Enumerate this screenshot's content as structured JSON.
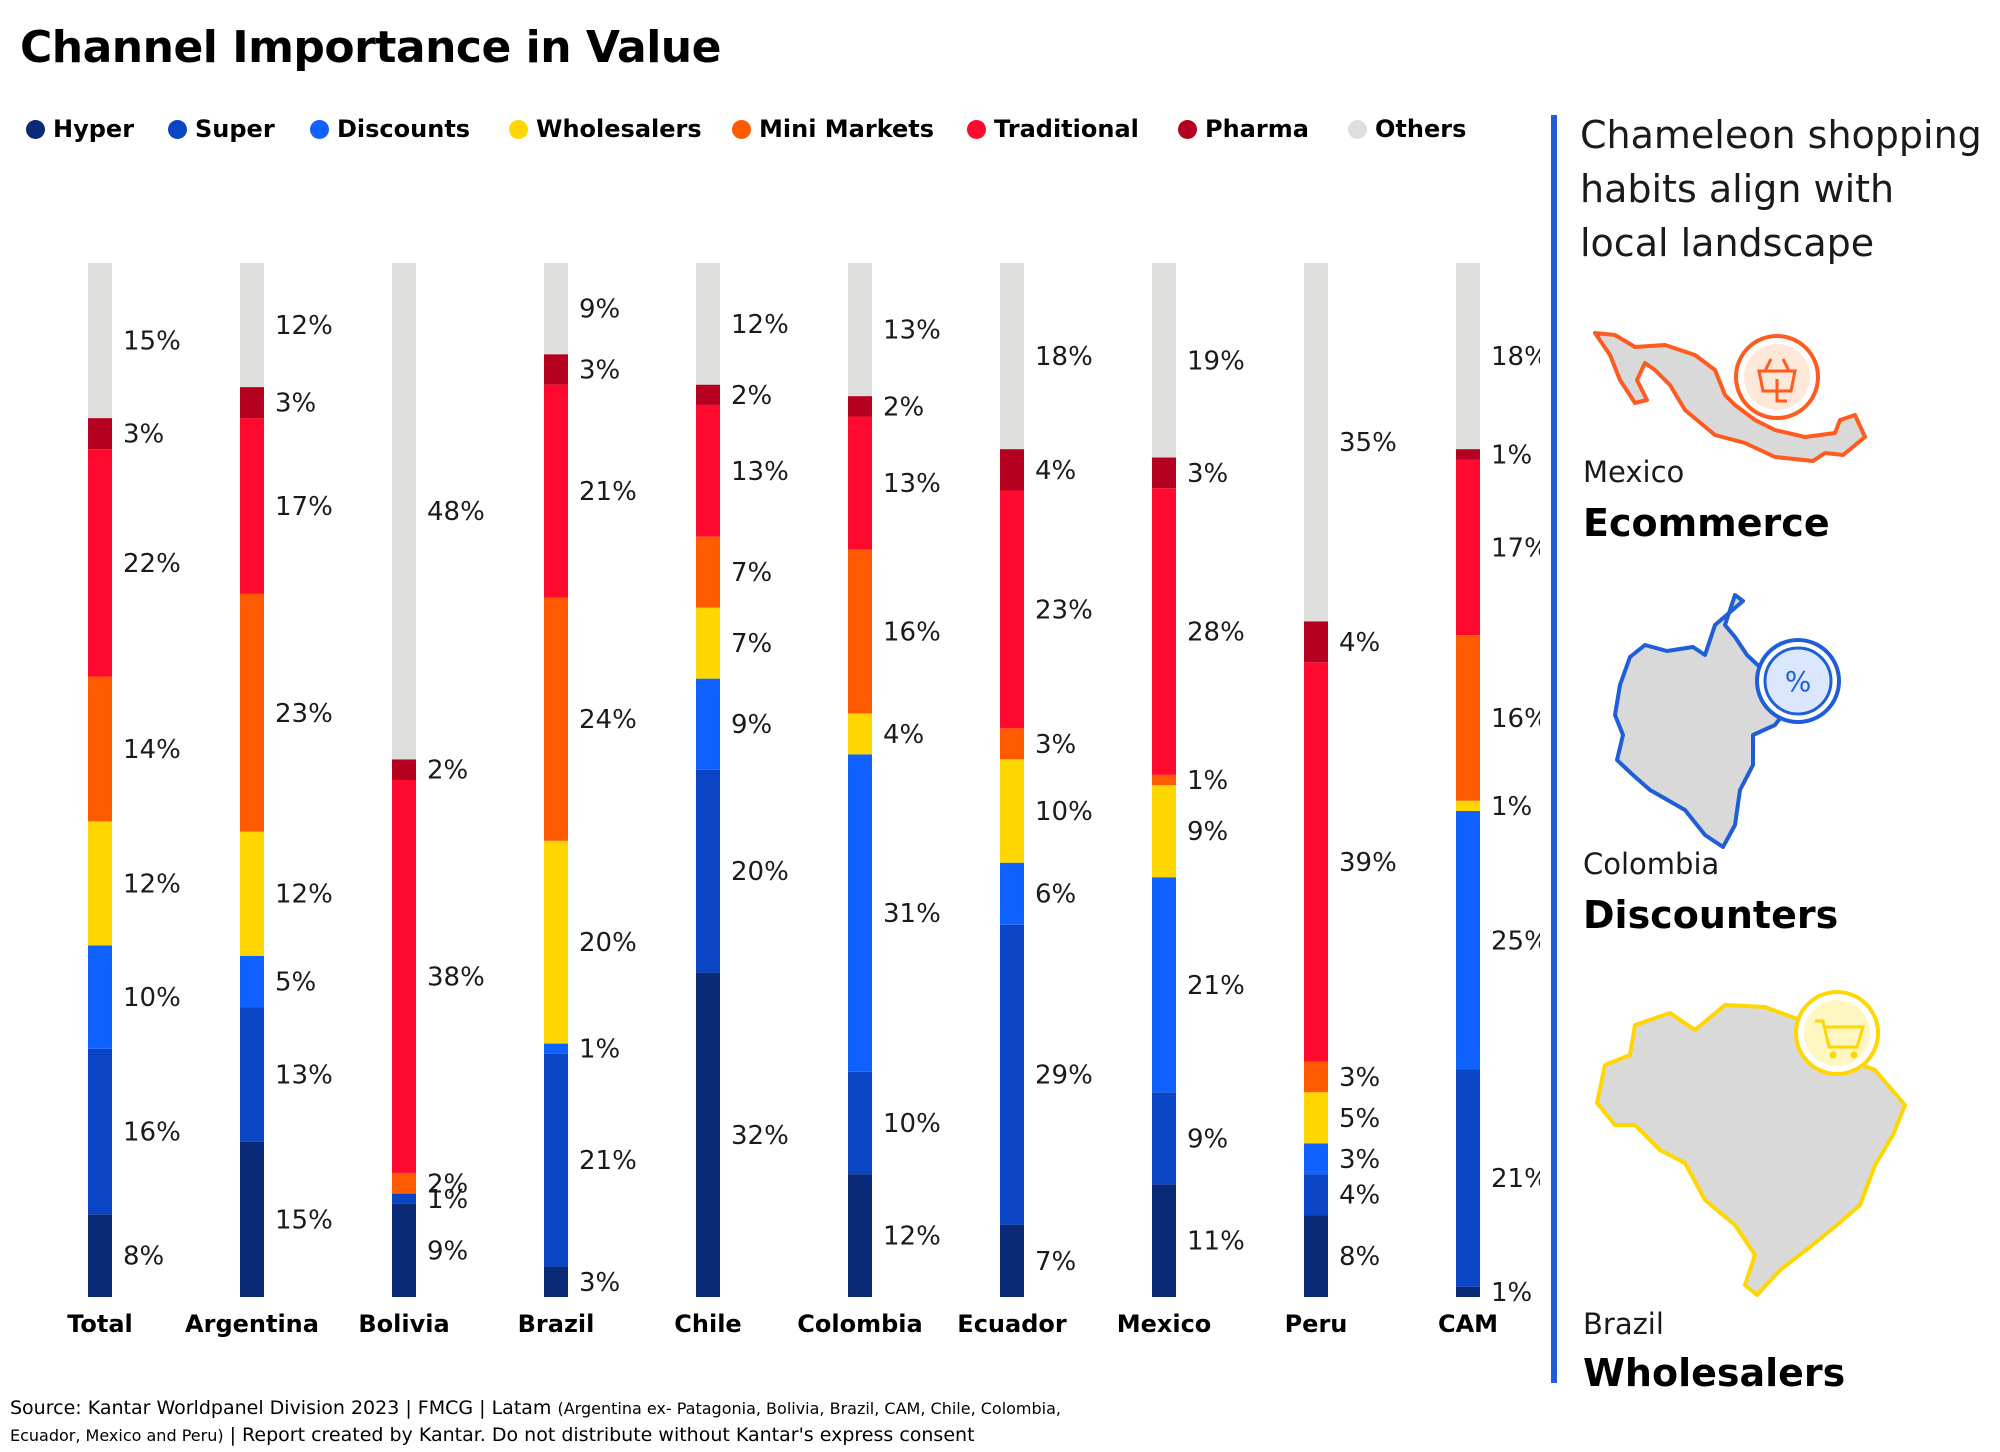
{
  "title": "Channel Importance in Value",
  "legend": [
    {
      "label": "Hyper",
      "color": "#0a2a78"
    },
    {
      "label": "Super",
      "color": "#0a45c6"
    },
    {
      "label": "Discounts",
      "color": "#0f62ff"
    },
    {
      "label": "Wholesalers",
      "color": "#ffd600"
    },
    {
      "label": "Mini Markets",
      "color": "#ff5a00"
    },
    {
      "label": "Traditional",
      "color": "#ff0a2e"
    },
    {
      "label": "Pharma",
      "color": "#b5001f"
    },
    {
      "label": "Others",
      "color": "#dededc"
    }
  ],
  "chart_data": {
    "type": "bar",
    "stacked": true,
    "percent": true,
    "title": "Channel Importance in Value",
    "categories": [
      "Total",
      "Argentina",
      "Bolivia",
      "Brazil",
      "Chile",
      "Colombia",
      "Ecuador",
      "Mexico",
      "Peru",
      "CAM"
    ],
    "series": [
      {
        "name": "Hyper",
        "color": "#0a2a78",
        "values": [
          8,
          15,
          9,
          3,
          32,
          12,
          7,
          11,
          8,
          1
        ]
      },
      {
        "name": "Super",
        "color": "#0a45c6",
        "values": [
          16,
          13,
          1,
          21,
          20,
          10,
          29,
          9,
          4,
          21
        ]
      },
      {
        "name": "Discounts",
        "color": "#0f62ff",
        "values": [
          10,
          5,
          null,
          1,
          9,
          31,
          6,
          21,
          3,
          25
        ]
      },
      {
        "name": "Wholesalers",
        "color": "#ffd600",
        "values": [
          12,
          12,
          null,
          20,
          7,
          4,
          10,
          9,
          5,
          1
        ]
      },
      {
        "name": "Mini Markets",
        "color": "#ff5a00",
        "values": [
          14,
          23,
          2,
          24,
          7,
          16,
          3,
          1,
          3,
          16
        ]
      },
      {
        "name": "Traditional",
        "color": "#ff0a2e",
        "values": [
          22,
          17,
          38,
          21,
          13,
          13,
          23,
          28,
          39,
          17
        ]
      },
      {
        "name": "Pharma",
        "color": "#b5001f",
        "values": [
          3,
          3,
          2,
          3,
          2,
          2,
          4,
          3,
          4,
          1
        ]
      },
      {
        "name": "Others",
        "color": "#dededc",
        "values": [
          15,
          12,
          48,
          9,
          12,
          13,
          18,
          19,
          35,
          18
        ]
      }
    ],
    "value_suffix": "%",
    "legend": "top"
  },
  "sidebar": {
    "heading": "Chameleon shopping habits align with local landscape",
    "callouts": [
      {
        "country": "Mexico",
        "channel": "Ecommerce",
        "map_color": "#ff5a1f",
        "icon": "basket-hand-icon"
      },
      {
        "country": "Colombia",
        "channel": "Discounters",
        "map_color": "#1f5ed8",
        "icon": "percent-icon"
      },
      {
        "country": "Brazil",
        "channel": "Wholesalers",
        "map_color": "#ffd600",
        "icon": "cart-icon"
      }
    ]
  },
  "source": {
    "main": "Source: Kantar Worldpanel Division 2023 | FMCG | Latam ",
    "countries": "(Argentina ex- Patagonia, Bolivia, Brazil, CAM, Chile, Colombia,",
    "countries2": "Ecuador, Mexico and Peru)",
    "rest": " | Report created by Kantar. Do not distribute without Kantar's express consent"
  }
}
